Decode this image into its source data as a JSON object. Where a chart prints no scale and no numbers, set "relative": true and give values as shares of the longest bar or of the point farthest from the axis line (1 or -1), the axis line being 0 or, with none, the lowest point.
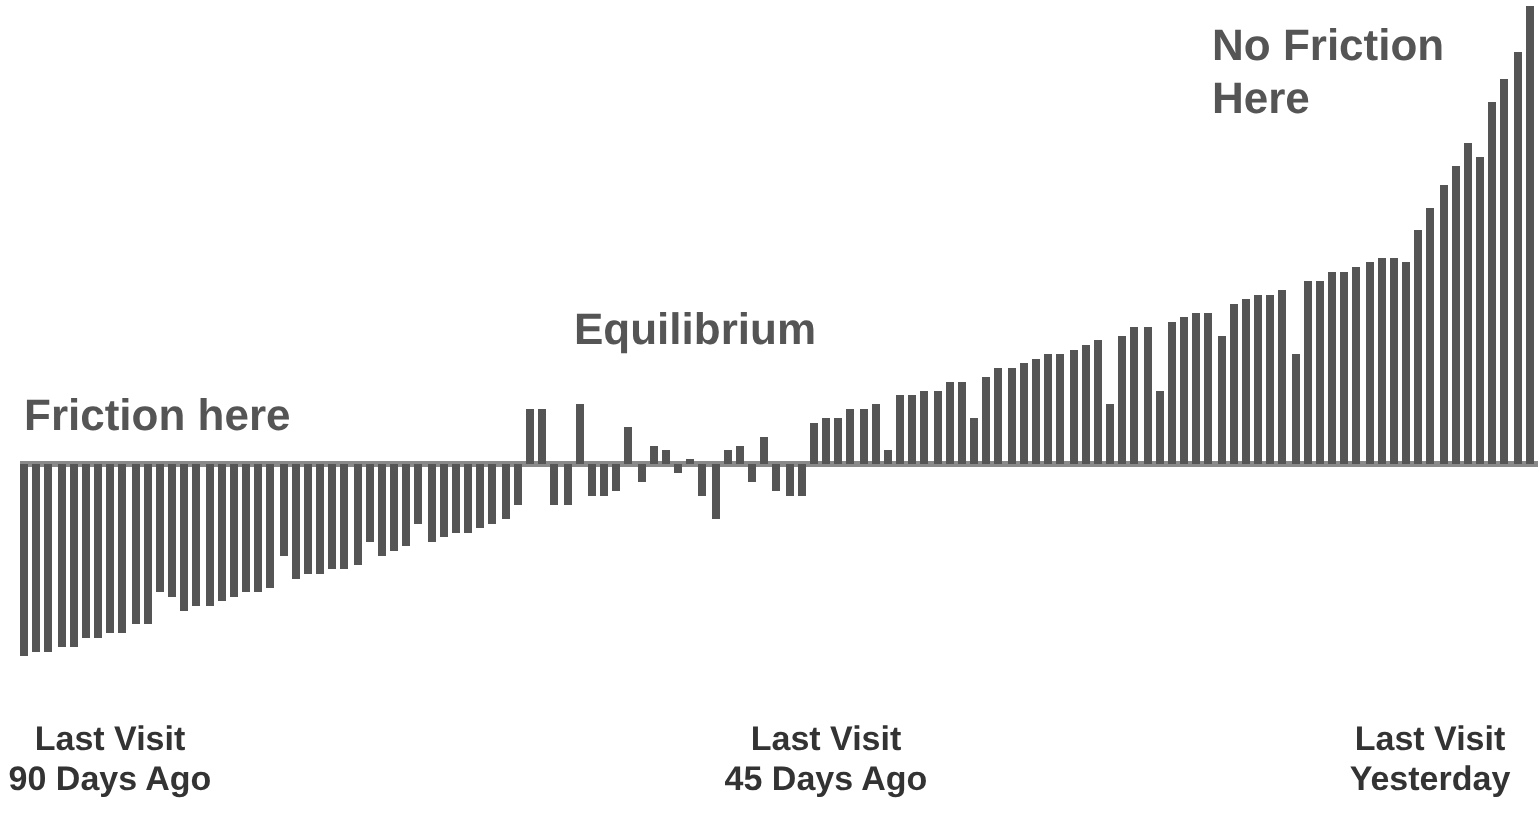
{
  "chart_data": {
    "type": "bar",
    "relative": true,
    "color": "#555555",
    "categories": [
      null,
      null,
      null,
      null,
      null,
      null,
      null,
      "Last Visit\n90 Days Ago",
      null,
      null,
      null,
      null,
      null,
      null,
      null,
      null,
      null,
      null,
      null,
      null,
      null,
      null,
      null,
      null,
      null,
      null,
      null,
      null,
      null,
      null,
      null,
      null,
      null,
      null,
      null,
      null,
      null,
      null,
      null,
      null,
      null,
      null,
      null,
      null,
      null,
      null,
      null,
      null,
      null,
      null,
      null,
      null,
      null,
      null,
      null,
      null,
      null,
      null,
      null,
      null,
      null,
      null,
      null,
      null,
      null,
      "Last Visit\n45 Days Ago",
      null,
      null,
      null,
      null,
      null,
      null,
      null,
      null,
      null,
      null,
      null,
      null,
      null,
      null,
      null,
      null,
      null,
      null,
      null,
      null,
      null,
      null,
      null,
      null,
      null,
      null,
      null,
      null,
      null,
      null,
      null,
      null,
      null,
      null,
      null,
      null,
      null,
      null,
      null,
      null,
      null,
      null,
      null,
      null,
      null,
      null,
      null,
      null,
      "Last Visit\nYesterday",
      null,
      null,
      null,
      null,
      null,
      null,
      null,
      null
    ],
    "values": [
      -0.42,
      -0.41,
      -0.41,
      -0.4,
      -0.4,
      -0.38,
      -0.38,
      -0.37,
      -0.37,
      -0.35,
      -0.35,
      -0.28,
      -0.29,
      -0.32,
      -0.31,
      -0.31,
      -0.3,
      -0.29,
      -0.28,
      -0.28,
      -0.27,
      -0.2,
      -0.25,
      -0.24,
      -0.24,
      -0.23,
      -0.23,
      -0.22,
      -0.17,
      -0.2,
      -0.19,
      -0.18,
      -0.13,
      -0.17,
      -0.16,
      -0.15,
      -0.15,
      -0.14,
      -0.13,
      -0.12,
      -0.09,
      0.12,
      0.12,
      -0.09,
      -0.09,
      0.13,
      -0.07,
      -0.07,
      -0.06,
      0.08,
      -0.04,
      0.04,
      0.03,
      -0.02,
      0.01,
      -0.07,
      -0.12,
      0.03,
      0.04,
      -0.04,
      0.06,
      -0.06,
      -0.07,
      -0.07,
      0.09,
      0.1,
      0.1,
      0.12,
      0.12,
      0.13,
      0.03,
      0.15,
      0.15,
      0.16,
      0.16,
      0.18,
      0.18,
      0.1,
      0.19,
      0.21,
      0.21,
      0.22,
      0.23,
      0.24,
      0.24,
      0.25,
      0.26,
      0.27,
      0.13,
      0.28,
      0.3,
      0.3,
      0.16,
      0.31,
      0.32,
      0.33,
      0.33,
      0.28,
      0.35,
      0.36,
      0.37,
      0.37,
      0.38,
      0.24,
      0.4,
      0.4,
      0.42,
      0.42,
      0.43,
      0.44,
      0.45,
      0.45,
      0.44,
      0.51,
      0.56,
      0.61,
      0.65,
      0.7,
      0.67,
      0.79,
      0.84,
      0.9,
      1.0
    ],
    "annotations": [
      "Friction here",
      "Equilibrium",
      "No Friction\nHere"
    ]
  }
}
